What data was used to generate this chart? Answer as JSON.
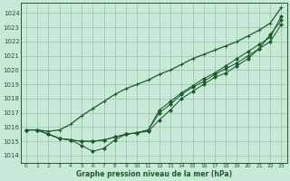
{
  "xlabel": "Graphe pression niveau de la mer (hPa)",
  "ylim": [
    1013.5,
    1024.7
  ],
  "xlim": [
    -0.5,
    23.5
  ],
  "yticks": [
    1014,
    1015,
    1016,
    1017,
    1018,
    1019,
    1020,
    1021,
    1022,
    1023,
    1024
  ],
  "xticks": [
    0,
    1,
    2,
    3,
    4,
    5,
    6,
    7,
    8,
    9,
    10,
    11,
    12,
    13,
    14,
    15,
    16,
    17,
    18,
    19,
    20,
    21,
    22,
    23
  ],
  "bg_color": "#c8e8d8",
  "grid_color": "#a0c8b0",
  "line_color": "#1a5c2a",
  "series": [
    [
      1015.8,
      1015.8,
      1015.7,
      1015.8,
      1016.2,
      1016.8,
      1017.3,
      1017.8,
      1018.3,
      1018.7,
      1019.0,
      1019.3,
      1019.7,
      1020.0,
      1020.4,
      1020.8,
      1021.1,
      1021.4,
      1021.7,
      1022.0,
      1022.4,
      1022.8,
      1023.3,
      1024.4
    ],
    [
      1015.8,
      1015.8,
      1015.5,
      1015.2,
      1015.1,
      1014.7,
      1014.3,
      1014.5,
      1015.1,
      1015.5,
      1015.6,
      1015.7,
      1016.5,
      1017.2,
      1018.0,
      1018.5,
      1019.0,
      1019.5,
      1019.8,
      1020.3,
      1020.8,
      1021.5,
      1022.5,
      1023.5
    ],
    [
      1015.8,
      1015.8,
      1015.5,
      1015.2,
      1015.1,
      1015.0,
      1015.0,
      1015.1,
      1015.3,
      1015.5,
      1015.6,
      1015.8,
      1017.0,
      1017.6,
      1018.3,
      1018.8,
      1019.2,
      1019.7,
      1020.1,
      1020.5,
      1021.0,
      1021.5,
      1022.0,
      1023.2
    ],
    [
      1015.8,
      1015.8,
      1015.5,
      1015.2,
      1015.1,
      1015.0,
      1015.0,
      1015.1,
      1015.3,
      1015.5,
      1015.6,
      1015.8,
      1017.2,
      1017.8,
      1018.4,
      1018.9,
      1019.4,
      1019.8,
      1020.3,
      1020.8,
      1021.3,
      1021.8,
      1022.3,
      1023.8
    ]
  ]
}
